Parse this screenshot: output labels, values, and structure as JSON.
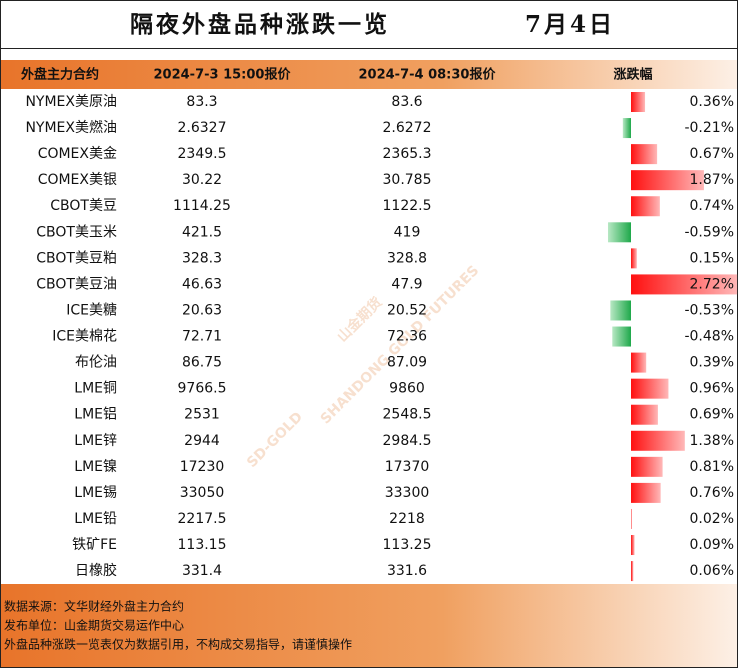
{
  "header": {
    "title": "隔夜外盘品种涨跌一览",
    "date": "7月4日"
  },
  "table": {
    "columns": [
      "外盘主力合约",
      "2024-7-3 15:00报价",
      "2024-7-4 08:30报价",
      "涨跌幅"
    ],
    "rows": [
      [
        "NYMEX美原油",
        "83.3",
        "83.6"
      ],
      [
        "NYMEX美燃油",
        "2.6327",
        "2.6272"
      ],
      [
        "COMEX美金",
        "2349.5",
        "2365.3"
      ],
      [
        "COMEX美银",
        "30.22",
        "30.785"
      ],
      [
        "CBOT美豆",
        "1114.25",
        "1122.5"
      ],
      [
        "CBOT美玉米",
        "421.5",
        "419"
      ],
      [
        "CBOT美豆粕",
        "328.3",
        "328.8"
      ],
      [
        "CBOT美豆油",
        "46.63",
        "47.9"
      ],
      [
        "ICE美糖",
        "20.63",
        "20.52"
      ],
      [
        "ICE美棉花",
        "72.71",
        "72.36"
      ],
      [
        "布伦油",
        "86.75",
        "87.09"
      ],
      [
        "LME铜",
        "9766.5",
        "9860"
      ],
      [
        "LME铝",
        "2531",
        "2548.5"
      ],
      [
        "LME锌",
        "2944",
        "2984.5"
      ],
      [
        "LME镍",
        "17230",
        "17370"
      ],
      [
        "LME锡",
        "33050",
        "33300"
      ],
      [
        "LME铅",
        "2217.5",
        "2218"
      ],
      [
        "铁矿FE",
        "113.15",
        "113.25"
      ],
      [
        "日橡胶",
        "331.4",
        "331.6"
      ]
    ],
    "change": {
      "values": [
        0.36,
        -0.21,
        0.67,
        1.87,
        0.74,
        -0.59,
        0.15,
        2.72,
        -0.53,
        -0.48,
        0.39,
        0.96,
        0.69,
        1.38,
        0.81,
        0.76,
        0.02,
        0.09,
        0.06
      ],
      "value_labels": [
        "0.36%",
        "-0.21%",
        "0.67%",
        "1.87%",
        "0.74%",
        "-0.59%",
        "0.15%",
        "2.72%",
        "-0.53%",
        "-0.48%",
        "0.39%",
        "0.96%",
        "0.69%",
        "1.38%",
        "0.81%",
        "0.76%",
        "0.02%",
        "0.09%",
        "0.06%"
      ]
    }
  },
  "watermark": [
    "山金期货",
    "SHANDONG GOLD FUTURES",
    "SD-GOLD"
  ],
  "footer": [
    "数据来源：文华财经外盘主力合约",
    "发布单位：山金期货交易运作中心",
    "外盘品种涨跌一览表仅为数据引用，不构成交易指导，请谨慎操作"
  ]
}
